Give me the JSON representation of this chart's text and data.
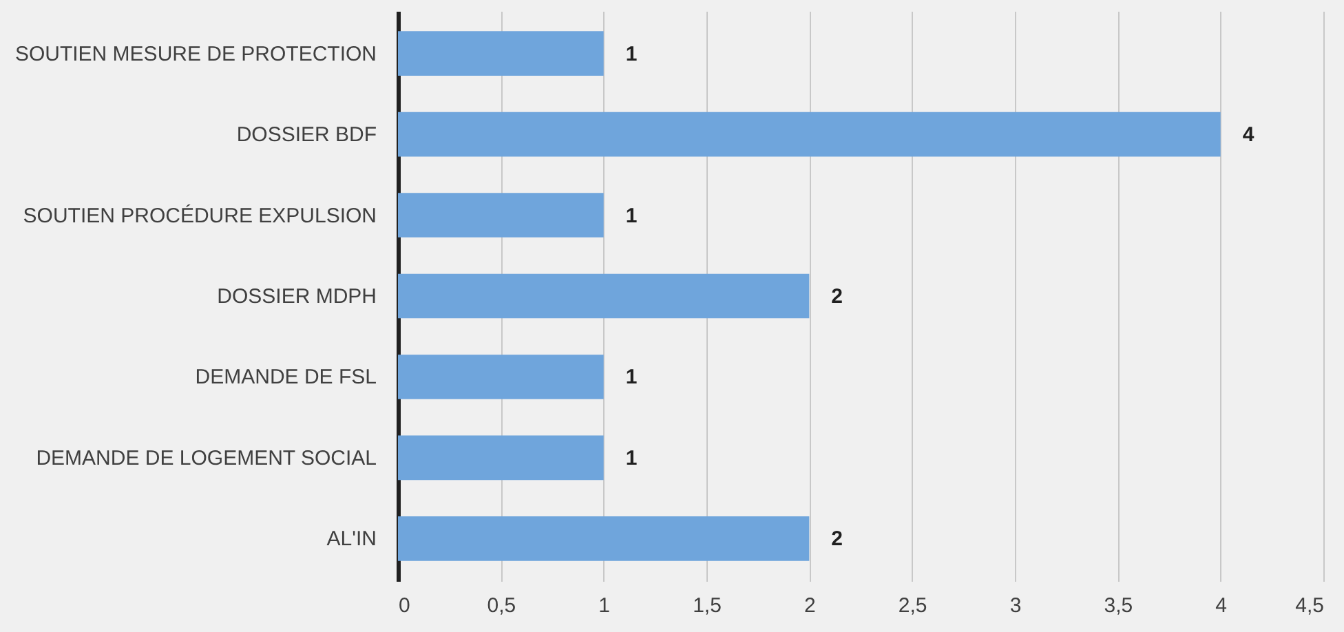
{
  "chart_data": {
    "type": "bar",
    "orientation": "horizontal",
    "categories": [
      "SOUTIEN MESURE DE PROTECTION",
      "DOSSIER BDF",
      "SOUTIEN PROCÉDURE EXPULSION",
      "DOSSIER MDPH",
      "DEMANDE DE FSL",
      "DEMANDE DE LOGEMENT SOCIAL",
      "AL'IN"
    ],
    "values": [
      1,
      4,
      1,
      2,
      1,
      1,
      2
    ],
    "color": "#6fa5dc",
    "xlim": [
      0,
      4.5
    ],
    "xticks": [
      0,
      {
        "value": 0.5,
        "label": "0,5"
      },
      1,
      {
        "value": 1.5,
        "label": "1,5"
      },
      2,
      {
        "value": 2.5,
        "label": "2,5"
      },
      3,
      {
        "value": 3.5,
        "label": "3,5"
      },
      4,
      {
        "value": 4.5,
        "label": "4,5"
      }
    ],
    "grid": "x",
    "data_labels": true
  }
}
